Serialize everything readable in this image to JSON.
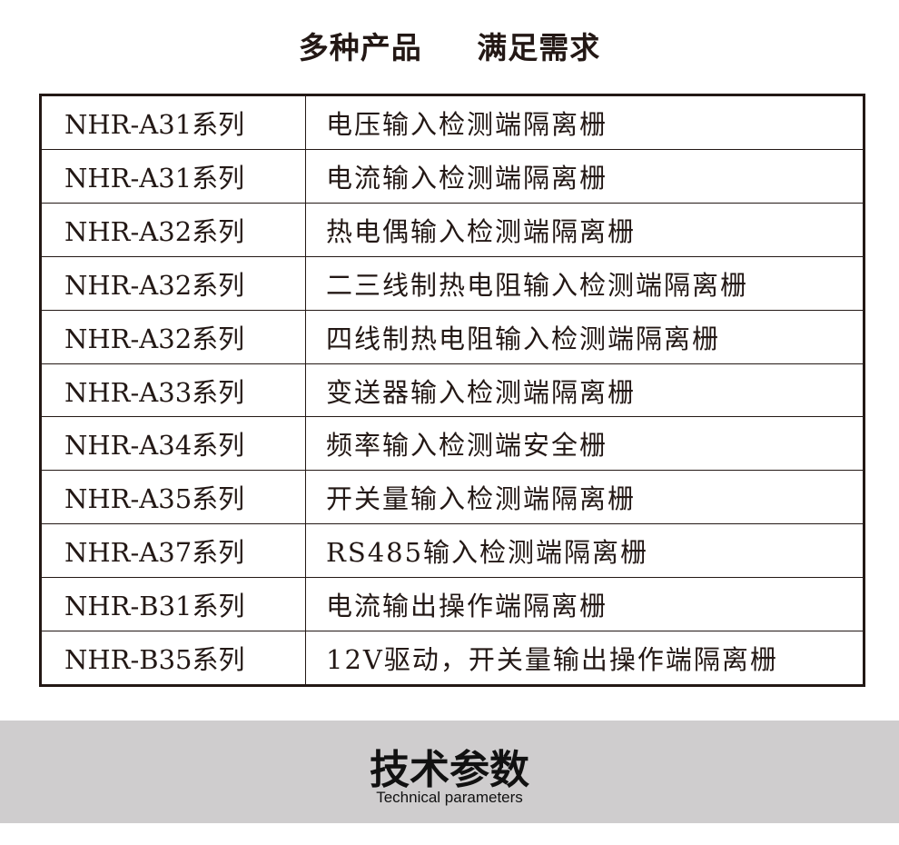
{
  "header": {
    "title_left": "多种产品",
    "title_right": "满足需求"
  },
  "table": {
    "rows": [
      {
        "series": "NHR-A31系列",
        "desc": "电压输入检测端隔离栅"
      },
      {
        "series": "NHR-A31系列",
        "desc": "电流输入检测端隔离栅"
      },
      {
        "series": "NHR-A32系列",
        "desc": "热电偶输入检测端隔离栅"
      },
      {
        "series": "NHR-A32系列",
        "desc": "二三线制热电阻输入检测端隔离栅"
      },
      {
        "series": "NHR-A32系列",
        "desc": "四线制热电阻输入检测端隔离栅"
      },
      {
        "series": "NHR-A33系列",
        "desc": "变送器输入检测端隔离栅"
      },
      {
        "series": "NHR-A34系列",
        "desc": "频率输入检测端安全栅"
      },
      {
        "series": "NHR-A35系列",
        "desc": "开关量输入检测端隔离栅"
      },
      {
        "series": "NHR-A37系列",
        "desc": "RS485输入检测端隔离栅"
      },
      {
        "series": "NHR-B31系列",
        "desc": "电流输出操作端隔离栅"
      },
      {
        "series": "NHR-B35系列",
        "desc": "12V驱动，开关量输出操作端隔离栅"
      }
    ]
  },
  "section": {
    "title": "技术参数",
    "subtitle": "Technical parameters",
    "band_color": "#cfcdce"
  }
}
